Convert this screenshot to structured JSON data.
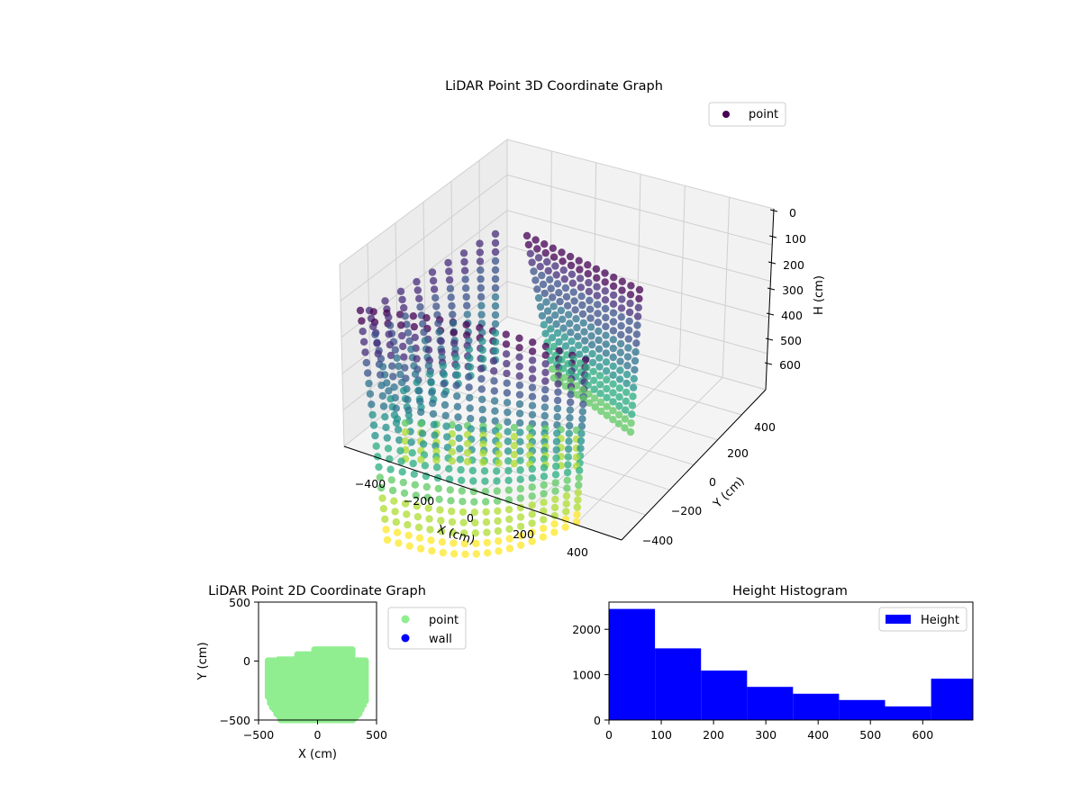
{
  "chart_data": [
    {
      "type": "scatter",
      "projection": "3d",
      "title": "LiDAR Point 3D Coordinate Graph",
      "xlabel": "X (cm)",
      "ylabel": "Y (cm)",
      "zlabel": "H (cm)",
      "x_ticks": [
        "−400",
        "−200",
        "0",
        "200",
        "400"
      ],
      "y_ticks": [
        "−400",
        "−200",
        "0",
        "200",
        "400"
      ],
      "z_ticks": [
        "0",
        "100",
        "200",
        "300",
        "400",
        "500",
        "600"
      ],
      "z_inverted": true,
      "colormap": "viridis",
      "legend": [
        {
          "label": "point",
          "color": "#440154"
        }
      ],
      "legend_position": "top-right",
      "grid": true
    },
    {
      "type": "scatter",
      "title": "LiDAR Point 2D Coordinate Graph",
      "xlabel": "X (cm)",
      "ylabel": "Y (cm)",
      "xlim": [
        -500,
        500
      ],
      "ylim": [
        -500,
        500
      ],
      "x_ticks": [
        "−500",
        "0",
        "500"
      ],
      "y_ticks": [
        "−500",
        "0",
        "500"
      ],
      "series": [
        {
          "name": "point",
          "color": "#90ee90"
        },
        {
          "name": "wall",
          "color": "#0000ff"
        }
      ],
      "legend_position": "outside-right"
    },
    {
      "type": "bar",
      "subtype": "histogram",
      "title": "Height Histogram",
      "bin_edges": [
        0,
        88,
        176,
        264,
        352,
        440,
        528,
        616,
        696
      ],
      "values": [
        2450,
        1580,
        1090,
        730,
        580,
        440,
        300,
        910
      ],
      "xlim": [
        0,
        696
      ],
      "ylim": [
        0,
        2600
      ],
      "x_ticks": [
        "0",
        "100",
        "200",
        "300",
        "400",
        "500",
        "600"
      ],
      "y_ticks": [
        "0",
        "1000",
        "2000"
      ],
      "series": [
        {
          "name": "Height",
          "color": "#0000ff"
        }
      ],
      "legend_position": "top-right"
    }
  ]
}
